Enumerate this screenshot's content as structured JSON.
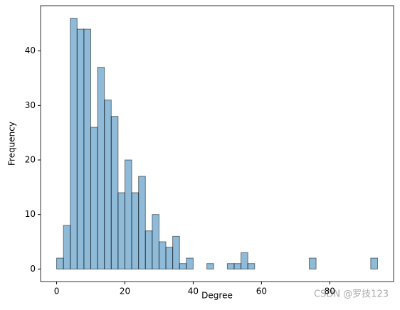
{
  "chart_data": {
    "type": "histogram",
    "x_label": "Degree",
    "y_label": "Frequency",
    "bins": [
      0,
      2,
      4,
      6,
      8,
      10,
      12,
      14,
      16,
      18,
      20,
      22,
      24,
      26,
      28,
      30,
      32,
      34,
      36,
      38,
      40,
      42,
      44,
      46,
      48,
      50,
      52,
      54,
      56,
      58,
      60,
      62,
      64,
      66,
      68,
      70,
      72,
      74,
      76,
      78,
      80,
      82,
      84,
      86,
      88,
      90,
      92,
      94
    ],
    "values": [
      2,
      8,
      46,
      44,
      44,
      26,
      37,
      31,
      28,
      14,
      20,
      14,
      17,
      7,
      10,
      5,
      4,
      6,
      1,
      2,
      0,
      0,
      1,
      0,
      0,
      1,
      1,
      3,
      1,
      0,
      0,
      0,
      0,
      0,
      0,
      0,
      0,
      2,
      0,
      0,
      0,
      0,
      0,
      0,
      0,
      0,
      2
    ],
    "color": "#1f77b4",
    "xlim": [
      -4.7,
      98.7
    ],
    "ylim": [
      -2.3,
      48.3
    ],
    "xticks": [
      0,
      20,
      40,
      60,
      80
    ],
    "yticks": [
      0,
      10,
      20,
      30,
      40
    ],
    "watermark": "CSDN @罗技123"
  }
}
